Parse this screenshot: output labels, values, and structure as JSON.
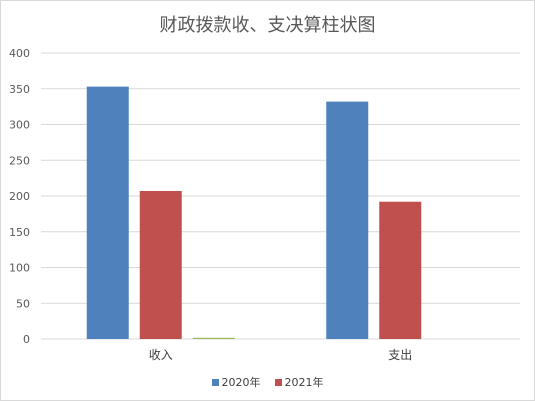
{
  "chart_data": {
    "type": "bar",
    "title": "财政拨款收、支决算柱状图",
    "categories": [
      "收入",
      "支出"
    ],
    "series": [
      {
        "name": "2020年",
        "color": "#4f81bd",
        "values": [
          353,
          332
        ]
      },
      {
        "name": "2021年",
        "color": "#c0504d",
        "values": [
          207,
          192
        ]
      },
      {
        "name": "",
        "color": "#9bbb59",
        "values": [
          1,
          0
        ]
      }
    ],
    "yticks": [
      "0",
      "50",
      "100",
      "150",
      "200",
      "250",
      "300",
      "350",
      "400"
    ],
    "ylim": [
      0,
      400
    ],
    "grid": true,
    "legend_position": "bottom"
  }
}
